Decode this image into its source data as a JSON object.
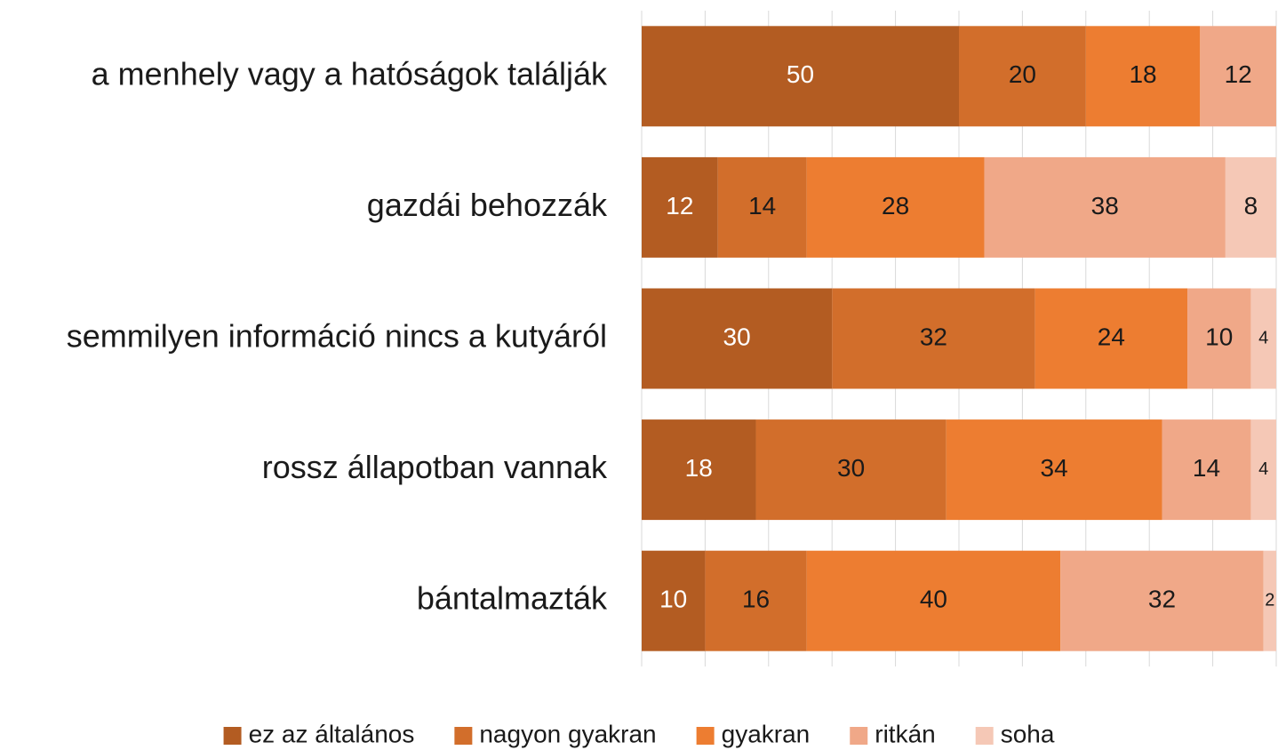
{
  "chart_data": {
    "type": "stacked_barh",
    "categories": [
      "a menhely vagy a hatóságok találják",
      "gazdái behozzák",
      "semmilyen információ nincs a kutyáról",
      "rossz állapotban vannak",
      "bántalmazták"
    ],
    "series": [
      {
        "name": "ez az általános",
        "color": "#b35c22",
        "label_color": "#ffffff",
        "values": [
          50,
          12,
          30,
          18,
          10
        ]
      },
      {
        "name": "nagyon gyakran",
        "color": "#d26e2b",
        "label_color": "#1a1a1a",
        "values": [
          20,
          14,
          32,
          30,
          16
        ]
      },
      {
        "name": "gyakran",
        "color": "#ed7d31",
        "label_color": "#1a1a1a",
        "values": [
          18,
          28,
          24,
          34,
          40
        ]
      },
      {
        "name": "ritkán",
        "color": "#f0a888",
        "label_color": "#1a1a1a",
        "values": [
          12,
          38,
          10,
          14,
          32
        ]
      },
      {
        "name": "soha",
        "color": "#f5c8b6",
        "label_color": "#1a1a1a",
        "values": [
          0,
          8,
          4,
          4,
          2
        ]
      }
    ],
    "xlim": [
      0,
      100
    ],
    "xticks": [
      0,
      10,
      20,
      30,
      40,
      50,
      60,
      70,
      80,
      90,
      100
    ],
    "grid": true,
    "legend": "bottom"
  }
}
